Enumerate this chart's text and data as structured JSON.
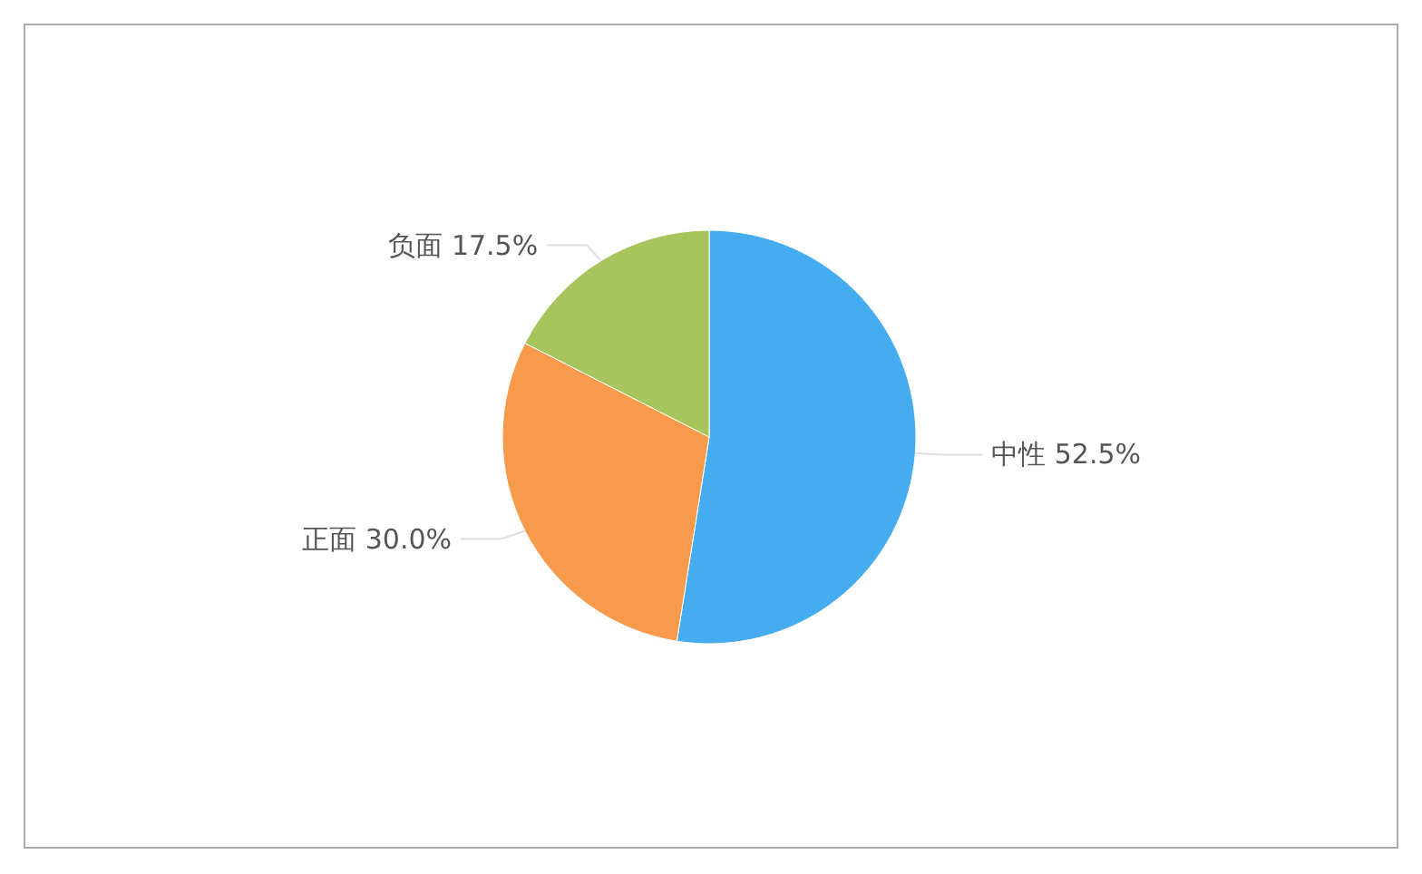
{
  "chart_data": {
    "type": "pie",
    "categories": [
      "中性",
      "正面",
      "负面"
    ],
    "values": [
      52.5,
      30.0,
      17.5
    ],
    "value_labels": [
      "52.5%",
      "30.0%",
      "17.5%"
    ],
    "colors": [
      "#46acf0",
      "#f79a4b",
      "#a7c55c"
    ]
  }
}
